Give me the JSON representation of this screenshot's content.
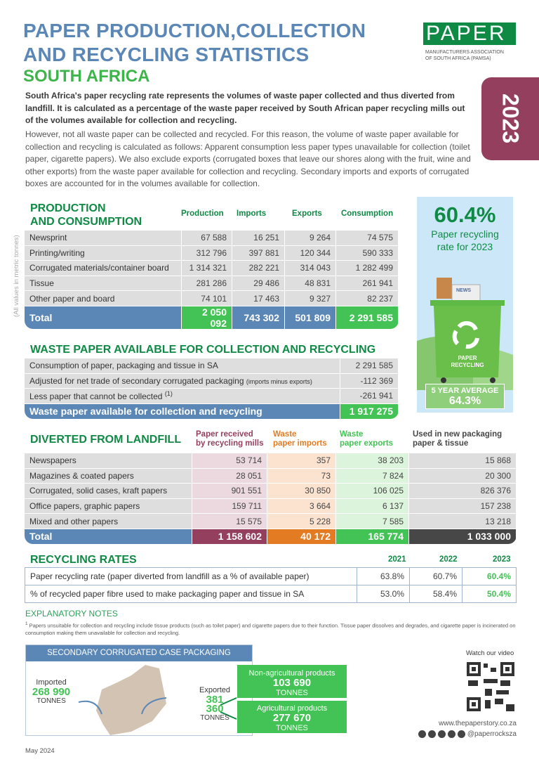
{
  "header": {
    "title_line1": "PAPER PRODUCTION,COLLECTION",
    "title_line2": "AND RECYCLING STATISTICS",
    "subtitle": "SOUTH AFRICA",
    "year_tab": "2023"
  },
  "logo": {
    "wordmark": "PAPER",
    "caption_line1": "MANUFACTURERS ASSOCIATION",
    "caption_line2": "OF SOUTH AFRICA (PAMSA)"
  },
  "intro": {
    "bold": "South Africa's paper recycling rate represents the volumes of waste paper collected and thus diverted from landfill. It is calculated as a percentage of the waste paper received by South African paper recycling mills out of the volumes available for collection and recycling.",
    "body": "However, not all waste paper can be collected and recycled. For this reason, the volume of waste paper available for collection and recycling is calculated as follows: Apparent consumption less paper types unavailable for collection (toilet paper, cigarette papers). We also exclude exports (corrugated boxes that leave our shores along with the fruit, wine and other exports) from the waste paper available for collection and recycling. Secondary imports and exports of corrugated boxes are accounted for in the volumes available for collection."
  },
  "production": {
    "title_line1": "PRODUCTION",
    "title_line2": "AND CONSUMPTION",
    "side_note": "(All values in metric tonnes)",
    "columns": [
      "Production",
      "Imports",
      "Exports",
      "Consumption"
    ],
    "rows": [
      [
        "Newsprint",
        "67 588",
        "16 251",
        "9 264",
        "74 575"
      ],
      [
        "Printing/writing",
        "312 796",
        "397 881",
        "120 344",
        "590 333"
      ],
      [
        "Corrugated materials/container board",
        "1 314 321",
        "282 221",
        "314 043",
        "1 282 499"
      ],
      [
        "Tissue",
        "281 286",
        "29 486",
        "48 831",
        "261 941"
      ],
      [
        "Other paper and board",
        "74 101",
        "17 463",
        "9 327",
        "82 237"
      ]
    ],
    "total": [
      "Total",
      "2 050 092",
      "743 302",
      "501 809",
      "2 291 585"
    ]
  },
  "rate_panel": {
    "rate": "60.4%",
    "label_line1": "Paper recycling",
    "label_line2": "rate for 2023",
    "bin_line1": "PAPER",
    "bin_line2": "RECYCLING",
    "news": "NEWS",
    "avg_label": "5 YEAR AVERAGE",
    "avg_value": "64.3%"
  },
  "waste": {
    "title": "WASTE PAPER AVAILABLE FOR COLLECTION AND RECYCLING",
    "rows": [
      {
        "label": "Consumption of paper, packaging and tissue in SA",
        "note": "",
        "value": "2 291 585"
      },
      {
        "label": "Adjusted for net trade of secondary corrugated packaging",
        "note": "(imports minus exports)",
        "value": "-112 369"
      },
      {
        "label": "Less paper that cannot be collected",
        "note": "(1)",
        "value": "-261 941"
      }
    ],
    "total": {
      "label": "Waste paper available for collection and recycling",
      "value": "1 917 275"
    }
  },
  "diverted": {
    "title": "DIVERTED FROM LANDFILL",
    "columns": [
      {
        "l1": "Paper received",
        "l2": "by recycling mills"
      },
      {
        "l1": "Waste",
        "l2": "paper imports"
      },
      {
        "l1": "Waste",
        "l2": "paper exports"
      },
      {
        "l1": "Used in new packaging",
        "l2": "paper & tissue"
      }
    ],
    "rows": [
      [
        "Newspapers",
        "53 714",
        "357",
        "38 203",
        "15 868"
      ],
      [
        "Magazines & coated papers",
        "28 051",
        "73",
        "7 824",
        "20 300"
      ],
      [
        "Corrugated, solid cases, kraft papers",
        "901 551",
        "30 850",
        "106 025",
        "826 376"
      ],
      [
        "Office papers, graphic papers",
        "159 711",
        "3 664",
        "6 137",
        "157 238"
      ],
      [
        "Mixed and other papers",
        "15 575",
        "5 228",
        "7 585",
        "13 218"
      ]
    ],
    "total": [
      "Total",
      "1 158 602",
      "40 172",
      "165 774",
      "1 033 000"
    ],
    "colors": {
      "received": "#943f5e",
      "imports": "#e37b22",
      "exports": "#43c355",
      "used": "#474747"
    }
  },
  "rates": {
    "title": "RECYCLING RATES",
    "years": [
      "2021",
      "2022",
      "2023"
    ],
    "rows": [
      [
        "Paper recycling rate (paper diverted from landfill as a % of available paper)",
        "63.8%",
        "60.7%",
        "60.4%"
      ],
      [
        "% of recycled paper fibre used to make packaging paper and tissue in SA",
        "53.0%",
        "58.4%",
        "50.4%"
      ]
    ]
  },
  "notes": {
    "title": "EXPLANATORY NOTES",
    "sup": "1",
    "text": "Papers unsuitable for collection and recycling include tissue products (such as toilet paper) and cigarette papers due to their function. Tissue paper dissolves and degrades, and cigarette paper is incinerated on consumption making them unavailable for collection and recycling."
  },
  "secondary": {
    "title": "SECONDARY CORRUGATED CASE PACKAGING",
    "imported_label": "Imported",
    "imported_value": "268 990",
    "exported_label": "Exported",
    "exported_value": "381 360",
    "unit": "TONNES",
    "non_ag_label": "Non-agricultural products",
    "non_ag_value": "103 690",
    "ag_label": "Agricultural  products",
    "ag_value": "277 670"
  },
  "footer": {
    "video": "Watch our video",
    "website": "www.thepaperstory.co.za",
    "handle": "@paperrocksza",
    "date": "May 2024",
    "social_icons": [
      "instagram-icon",
      "facebook-icon",
      "x-icon",
      "linkedin-icon",
      "youtube-icon"
    ]
  },
  "colors": {
    "blue": "#5b87b6",
    "green": "#0f8a45",
    "bright_green": "#43c355",
    "maroon": "#943f5e"
  }
}
